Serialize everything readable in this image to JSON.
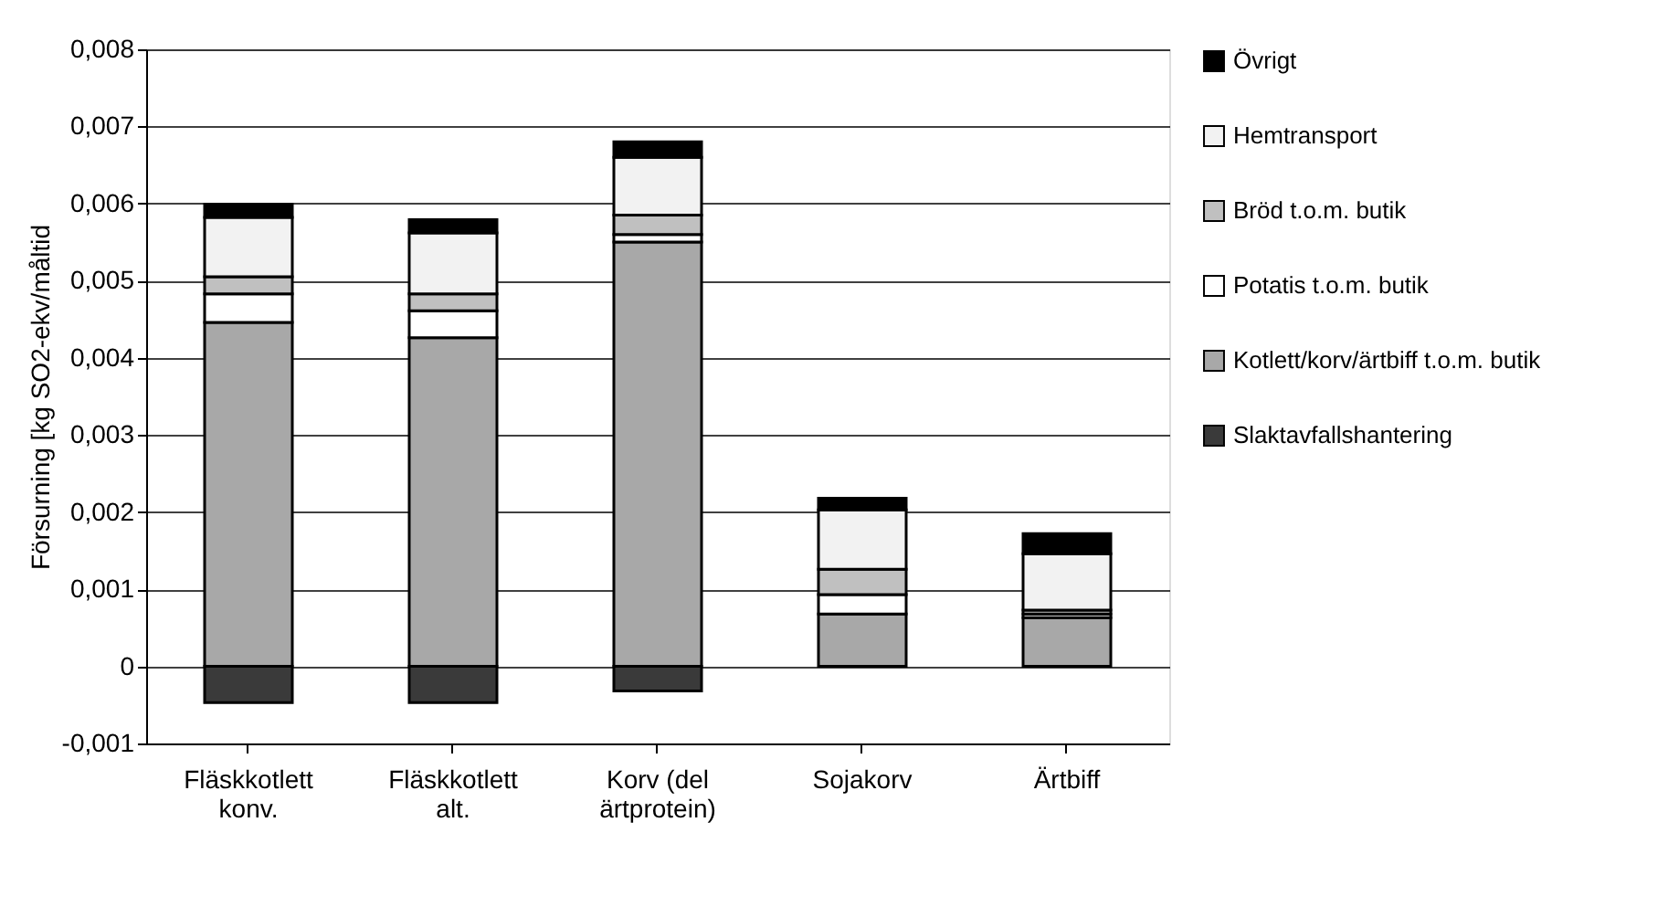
{
  "chart_data": {
    "type": "bar",
    "stacked": true,
    "ylabel": "Försurning [kg SO2-ekv/måltid",
    "categories": [
      "Fläskkotlett konv.",
      "Fläskkotlett alt.",
      "Korv (del ärtprotein)",
      "Sojakorv",
      "Ärtbiff"
    ],
    "series": [
      {
        "name": "Slaktavfallshantering",
        "color": "#3a3a3a",
        "values": [
          -0.00047,
          -0.00047,
          -0.00032,
          null,
          null
        ]
      },
      {
        "name": "Kotlett/korv/ärtbiff t.o.m. butik",
        "color": "#a8a8a8",
        "values": [
          0.00446,
          0.00426,
          0.0055,
          0.00068,
          0.00063
        ]
      },
      {
        "name": "Potatis  t.o.m. butik",
        "color": "#ffffff",
        "values": [
          0.00037,
          0.00035,
          0.0001,
          0.00025,
          5e-05
        ]
      },
      {
        "name": "Bröd t.o.m. butik",
        "color": "#c0c0c0",
        "values": [
          0.00022,
          0.00022,
          0.00025,
          0.00033,
          5e-05
        ]
      },
      {
        "name": "Hemtransport",
        "color": "#f2f2f2",
        "values": [
          0.00077,
          0.00079,
          0.00075,
          0.00077,
          0.00073
        ]
      },
      {
        "name": "Övrigt",
        "color": "#000000",
        "values": [
          0.00017,
          0.00017,
          0.0002,
          0.00015,
          0.00026
        ]
      }
    ],
    "ylim": [
      -0.001,
      0.008
    ],
    "yticks": [
      {
        "value": -0.001,
        "label": "-0,001"
      },
      0,
      {
        "value": 0.001,
        "label": "0,001"
      },
      {
        "value": 0.002,
        "label": "0,002"
      },
      {
        "value": 0.003,
        "label": "0,003"
      },
      {
        "value": 0.004,
        "label": "0,004"
      },
      {
        "value": 0.005,
        "label": "0,005"
      },
      {
        "value": 0.006,
        "label": "0,006"
      },
      {
        "value": 0.007,
        "label": "0,007"
      },
      {
        "value": 0.008,
        "label": "0,008"
      }
    ],
    "grid": "y",
    "legend": "right"
  }
}
